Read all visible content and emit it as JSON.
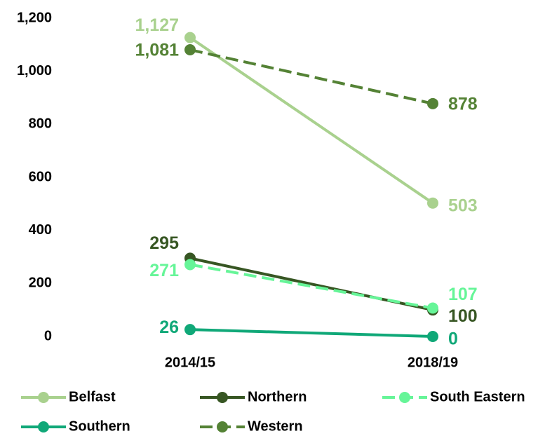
{
  "chart_data": {
    "type": "line",
    "categories": [
      "2014/15",
      "2018/19"
    ],
    "series": [
      {
        "name": "Belfast",
        "color": "#a9d18e",
        "dashed": false,
        "values": [
          1127,
          503
        ],
        "value_labels": [
          "1,127",
          "503"
        ]
      },
      {
        "name": "Northern",
        "color": "#375623",
        "dashed": false,
        "values": [
          295,
          100
        ]
      },
      {
        "name": "South Eastern",
        "color": "#66f598",
        "dashed": true,
        "values": [
          271,
          107
        ]
      },
      {
        "name": "Southern",
        "color": "#10a878",
        "dashed": false,
        "values": [
          26,
          0
        ]
      },
      {
        "name": "Western",
        "color": "#548235",
        "dashed": true,
        "values": [
          1081,
          878
        ],
        "value_labels": [
          "1,081",
          "878"
        ]
      }
    ],
    "ylim": [
      0,
      1200
    ],
    "yticks": [
      0,
      200,
      400,
      600,
      800,
      {
        "value": 1000,
        "label": "1,000"
      },
      {
        "value": 1200,
        "label": "1,200"
      }
    ],
    "grid": false,
    "legend": "bottom"
  }
}
